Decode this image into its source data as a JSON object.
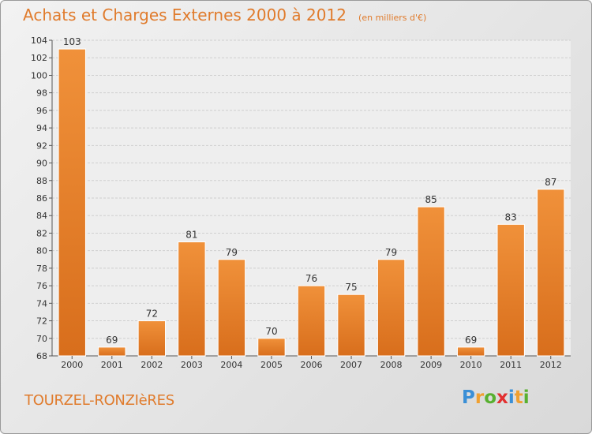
{
  "title": "Achats et Charges Externes 2000 à 2012",
  "unit_note": "(en milliers d'€)",
  "town": "TOURZEL-RONZIèRES",
  "logo": {
    "letters": [
      "P",
      "r",
      "o",
      "x",
      "i",
      "t",
      "i"
    ],
    "colors": [
      "#3a8fd6",
      "#f0a030",
      "#58b030",
      "#e23030",
      "#3a8fd6",
      "#f0a030",
      "#58b030"
    ]
  },
  "colors": {
    "bar": "#f0913a",
    "bar_dark": "#d86e1c",
    "text": "#e07b2c"
  },
  "chart_data": {
    "type": "bar",
    "categories": [
      "2000",
      "2001",
      "2002",
      "2003",
      "2004",
      "2005",
      "2006",
      "2007",
      "2008",
      "2009",
      "2010",
      "2011",
      "2012"
    ],
    "values": [
      103,
      69,
      72,
      81,
      79,
      70,
      76,
      75,
      79,
      85,
      69,
      83,
      87
    ],
    "ylim": [
      68,
      104
    ],
    "yticks": [
      68,
      70,
      72,
      74,
      76,
      78,
      80,
      82,
      84,
      86,
      88,
      90,
      92,
      94,
      96,
      98,
      100,
      102,
      104
    ],
    "grid": true
  }
}
